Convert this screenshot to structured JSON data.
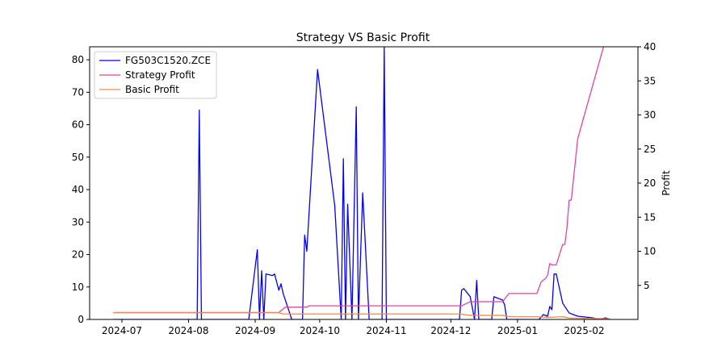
{
  "chart_data": {
    "type": "line",
    "title": "Strategy VS Basic Profit",
    "xlabel": "",
    "ylabel_left": "",
    "ylabel_right": "Profit",
    "x_domain": [
      "2024-06-16",
      "2025-02-26"
    ],
    "x_ticks": [
      {
        "date": "2024-07-01",
        "label": "2024-07"
      },
      {
        "date": "2024-08-01",
        "label": "2024-08"
      },
      {
        "date": "2024-09-01",
        "label": "2024-09"
      },
      {
        "date": "2024-10-01",
        "label": "2024-10"
      },
      {
        "date": "2024-11-01",
        "label": "2024-11"
      },
      {
        "date": "2024-12-01",
        "label": "2024-12"
      },
      {
        "date": "2025-01-01",
        "label": "2025-01"
      },
      {
        "date": "2025-02-01",
        "label": "2025-02"
      }
    ],
    "y_left": {
      "range": [
        0,
        84
      ],
      "ticks": [
        0,
        10,
        20,
        30,
        40,
        50,
        60,
        70,
        80
      ]
    },
    "y_right": {
      "range": [
        0,
        40
      ],
      "ticks": [
        5,
        10,
        15,
        20,
        25,
        30,
        35,
        40
      ]
    },
    "grid": false,
    "legend": {
      "placement": "top-left"
    },
    "series": [
      {
        "name": "FG503C1520.ZCE",
        "axis": "left",
        "color": "#0000ff",
        "points": [
          [
            "2024-06-27",
            0
          ],
          [
            "2024-08-05",
            0
          ],
          [
            "2024-08-06",
            64.5
          ],
          [
            "2024-08-07",
            0
          ],
          [
            "2024-08-29",
            0
          ],
          [
            "2024-09-02",
            21.5
          ],
          [
            "2024-09-03",
            0
          ],
          [
            "2024-09-04",
            15
          ],
          [
            "2024-09-05",
            0
          ],
          [
            "2024-09-06",
            14
          ],
          [
            "2024-09-09",
            13.5
          ],
          [
            "2024-09-10",
            14
          ],
          [
            "2024-09-12",
            9
          ],
          [
            "2024-09-13",
            11
          ],
          [
            "2024-09-14",
            8
          ],
          [
            "2024-09-18",
            0
          ],
          [
            "2024-09-23",
            0
          ],
          [
            "2024-09-24",
            26
          ],
          [
            "2024-09-25",
            21
          ],
          [
            "2024-09-30",
            77
          ],
          [
            "2024-10-08",
            35
          ],
          [
            "2024-10-11",
            0
          ],
          [
            "2024-10-12",
            49.5
          ],
          [
            "2024-10-13",
            0
          ],
          [
            "2024-10-14",
            35.5
          ],
          [
            "2024-10-16",
            0
          ],
          [
            "2024-10-18",
            65.5
          ],
          [
            "2024-10-19",
            0
          ],
          [
            "2024-10-21",
            39
          ],
          [
            "2024-10-24",
            0
          ],
          [
            "2024-10-30",
            0
          ],
          [
            "2024-10-31",
            84
          ],
          [
            "2024-11-01",
            0
          ],
          [
            "2024-12-05",
            0
          ],
          [
            "2024-12-06",
            9
          ],
          [
            "2024-12-07",
            9.5
          ],
          [
            "2024-12-10",
            7
          ],
          [
            "2024-12-12",
            0
          ],
          [
            "2024-12-13",
            12
          ],
          [
            "2024-12-14",
            0
          ],
          [
            "2024-12-20",
            0
          ],
          [
            "2024-12-21",
            7
          ],
          [
            "2024-12-25",
            6
          ],
          [
            "2024-12-26",
            4.5
          ],
          [
            "2024-12-27",
            0
          ],
          [
            "2025-01-11",
            0
          ],
          [
            "2025-01-13",
            1.5
          ],
          [
            "2025-01-15",
            1
          ],
          [
            "2025-01-16",
            4
          ],
          [
            "2025-01-17",
            3
          ],
          [
            "2025-01-18",
            14
          ],
          [
            "2025-01-19",
            14
          ],
          [
            "2025-01-22",
            5
          ],
          [
            "2025-01-25",
            2
          ],
          [
            "2025-01-27",
            1.5
          ],
          [
            "2025-01-29",
            1
          ],
          [
            "2025-02-05",
            0.5
          ],
          [
            "2025-02-08",
            0
          ],
          [
            "2025-02-11",
            0.5
          ],
          [
            "2025-02-13",
            0
          ]
        ]
      },
      {
        "name": "Strategy Profit",
        "axis": "right",
        "color": "#e83fa8",
        "points": [
          [
            "2024-06-27",
            1.0
          ],
          [
            "2024-09-12",
            1.0
          ],
          [
            "2024-09-15",
            1.8
          ],
          [
            "2024-09-25",
            1.8
          ],
          [
            "2024-09-26",
            2.0
          ],
          [
            "2024-12-06",
            2.0
          ],
          [
            "2024-12-10",
            2.6
          ],
          [
            "2024-12-25",
            2.6
          ],
          [
            "2024-12-28",
            3.8
          ],
          [
            "2025-01-10",
            3.8
          ],
          [
            "2025-01-12",
            5.5
          ],
          [
            "2025-01-14",
            6.0
          ],
          [
            "2025-01-15",
            6.5
          ],
          [
            "2025-01-16",
            8.2
          ],
          [
            "2025-01-17",
            8.0
          ],
          [
            "2025-01-19",
            8.0
          ],
          [
            "2025-01-22",
            11.0
          ],
          [
            "2025-01-23",
            11.0
          ],
          [
            "2025-01-24",
            13.5
          ],
          [
            "2025-01-25",
            17.5
          ],
          [
            "2025-01-26",
            17.5
          ],
          [
            "2025-01-29",
            26.5
          ],
          [
            "2025-02-10",
            40.0
          ],
          [
            "2025-02-12",
            42.0
          ]
        ]
      },
      {
        "name": "Basic Profit",
        "axis": "right",
        "color": "#f08a4b",
        "points": [
          [
            "2024-06-27",
            1.0
          ],
          [
            "2024-09-12",
            1.0
          ],
          [
            "2024-09-14",
            0.8
          ],
          [
            "2024-12-05",
            0.8
          ],
          [
            "2024-12-10",
            0.6
          ],
          [
            "2024-12-25",
            0.6
          ],
          [
            "2024-12-28",
            0.4
          ],
          [
            "2025-01-10",
            0.4
          ],
          [
            "2025-01-15",
            0.3
          ],
          [
            "2025-01-22",
            0.4
          ],
          [
            "2025-01-25",
            0.2
          ],
          [
            "2025-02-13",
            0.1
          ]
        ]
      }
    ]
  }
}
